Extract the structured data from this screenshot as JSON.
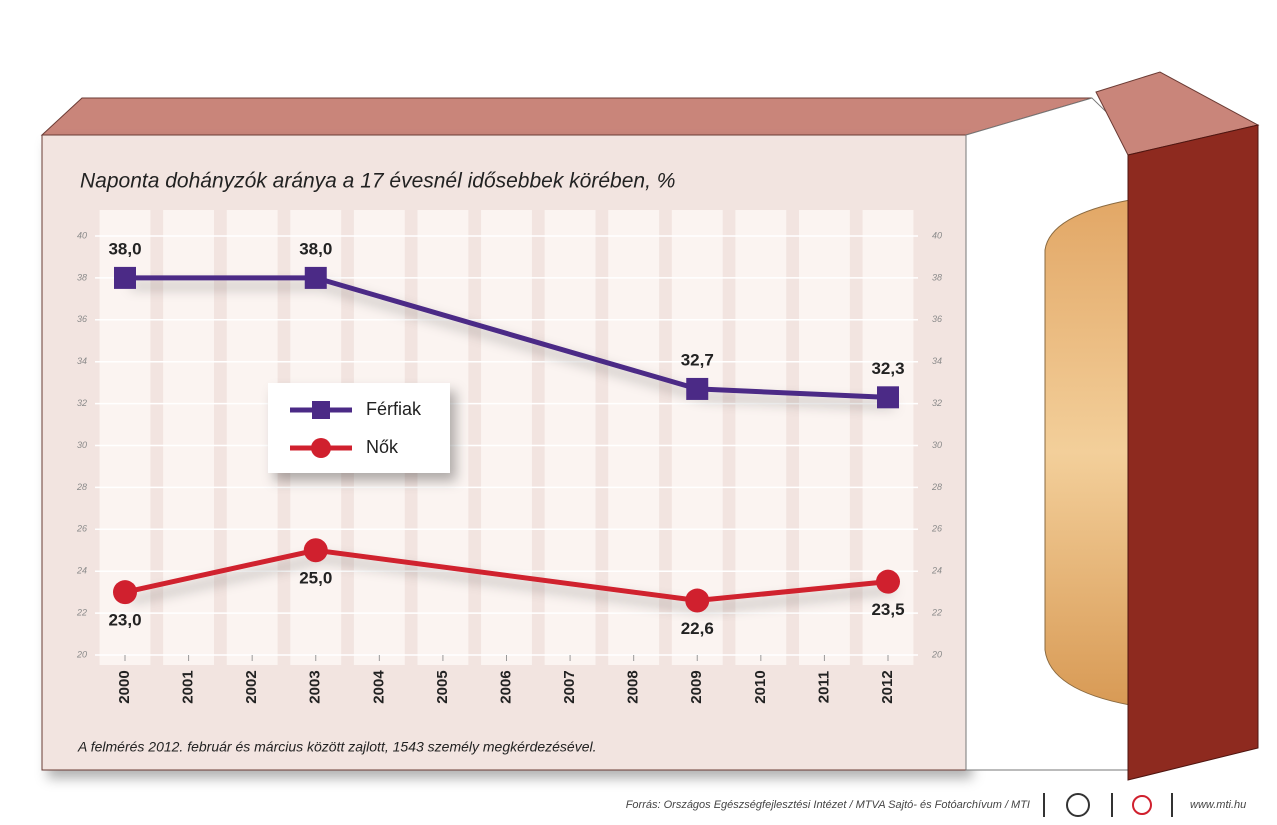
{
  "chart_data": {
    "type": "line",
    "title": "Naponta dohányzók aránya a 17 évesnél idősebbek körében, %",
    "note": "A felmérés 2012. február és március között zajlott, 1543 személy megkérdezésével.",
    "source": "Forrás: Országos Egészségfejlesztési Intézet / MTVA Sajtó- és Fotóarchívum / MTI",
    "website": "www.mti.hu",
    "x": [
      2000,
      2003,
      2009,
      2012
    ],
    "xlim": [
      2000,
      2012
    ],
    "xticks": [
      2000,
      2001,
      2002,
      2003,
      2004,
      2005,
      2006,
      2007,
      2008,
      2009,
      2010,
      2011,
      2012
    ],
    "ylim": [
      20,
      40
    ],
    "yticks": [
      20,
      22,
      24,
      26,
      28,
      30,
      32,
      34,
      36,
      38,
      40
    ],
    "y2lim": [
      20,
      40
    ],
    "y2ticks": [
      20,
      22,
      24,
      26,
      28,
      30,
      32,
      34,
      36,
      38,
      40
    ],
    "grid": true,
    "series": [
      {
        "name": "Férfiak",
        "color": "#4b2a86",
        "marker": "square",
        "values": [
          38.0,
          38.0,
          32.7,
          32.3
        ],
        "value_labels": [
          "38,0",
          "38,0",
          "32,7",
          "32,3"
        ]
      },
      {
        "name": "Nők",
        "color": "#d0202e",
        "marker": "circle",
        "values": [
          23.0,
          25.0,
          22.6,
          23.5
        ],
        "value_labels": [
          "23,0",
          "25,0",
          "22,6",
          "23,5"
        ]
      }
    ]
  }
}
